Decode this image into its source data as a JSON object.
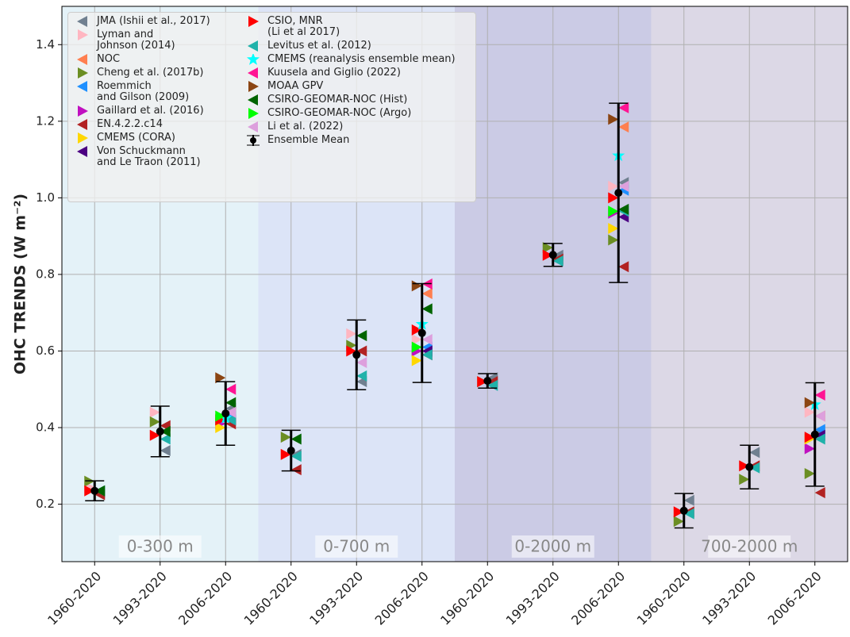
{
  "chart_data": {
    "type": "scatter",
    "y_label": "OHC TRENDS (W m⁻²)",
    "categories": [
      "1960-2020",
      "1993-2020",
      "2006-2020",
      "1960-2020",
      "1993-2020",
      "2006-2020",
      "1960-2020",
      "1993-2020",
      "2006-2020",
      "1960-2020",
      "1993-2020",
      "2006-2020"
    ],
    "regions": [
      {
        "label": "0-300 m",
        "color": "#e4f2f8"
      },
      {
        "label": "0-700 m",
        "color": "#dce4f7"
      },
      {
        "label": "0-2000 m",
        "color": "#cbcbe5"
      },
      {
        "label": "700-2000 m",
        "color": "#dcd8e6"
      }
    ],
    "ylim": [
      0.05,
      1.5
    ],
    "yticks": [
      0.2,
      0.4,
      0.6,
      0.8,
      {
        "value": 1,
        "label": "1.0"
      },
      1.2,
      1.4
    ],
    "grid": true,
    "legend": "upper left",
    "series": [
      {
        "name": "JMA (Ishii et al., 2017)",
        "color": "#708090",
        "marker": "left",
        "values": [
          0.23,
          0.34,
          0.45,
          0.33,
          0.52,
          0.6,
          0.53,
          0.85,
          1.04,
          0.21,
          0.335,
          0.39
        ]
      },
      {
        "name": "Lyman and\n Johnson (2014)",
        "color": "#ffb6c1",
        "marker": "right",
        "values": [
          0.245,
          0.44,
          null,
          0.33,
          0.645,
          0.63,
          null,
          null,
          1.03,
          null,
          null,
          0.44
        ]
      },
      {
        "name": "NOC",
        "color": "#ff7f50",
        "marker": "left",
        "values": [
          null,
          null,
          0.44,
          null,
          null,
          0.75,
          null,
          null,
          1.185,
          null,
          null,
          0.43
        ]
      },
      {
        "name": "Cheng et al. (2017b)",
        "color": "#6b8e23",
        "marker": "right",
        "values": [
          0.26,
          0.415,
          0.42,
          0.375,
          0.615,
          0.6,
          0.52,
          0.87,
          0.89,
          0.155,
          0.265,
          0.28
        ]
      },
      {
        "name": "Roemmich\nand Gilson (2009)",
        "color": "#1e90ff",
        "marker": "left",
        "values": [
          null,
          null,
          0.43,
          null,
          null,
          0.61,
          null,
          null,
          1.02,
          null,
          null,
          0.395
        ]
      },
      {
        "name": "Gaillard et al. (2016)",
        "color": "#c010c0",
        "marker": "right",
        "values": [
          null,
          null,
          0.41,
          null,
          null,
          0.6,
          null,
          null,
          0.96,
          null,
          null,
          0.345
        ]
      },
      {
        "name": "EN.4.2.2.c14",
        "color": "#b22222",
        "marker": "left",
        "values": [
          0.225,
          0.405,
          0.41,
          0.29,
          0.6,
          0.59,
          0.52,
          0.84,
          0.82,
          0.18,
          0.3,
          0.23
        ]
      },
      {
        "name": "CMEMS (CORA)",
        "color": "#ffd700",
        "marker": "right",
        "values": [
          null,
          null,
          0.4,
          null,
          null,
          0.575,
          null,
          null,
          0.92,
          null,
          null,
          0.37
        ]
      },
      {
        "name": "Von Schuckmann\nand Le Traon (2011)",
        "color": "#4b0082",
        "marker": "left",
        "values": [
          null,
          null,
          0.42,
          null,
          null,
          0.6,
          null,
          null,
          0.95,
          null,
          null,
          0.38
        ]
      },
      {
        "name": "CSIO, MNR\n(Li et al 2017)",
        "color": "#ff0000",
        "marker": "right",
        "values": [
          0.235,
          0.38,
          0.42,
          0.33,
          0.6,
          0.655,
          0.52,
          0.85,
          1.0,
          0.18,
          0.3,
          0.375
        ]
      },
      {
        "name": "Levitus et al. (2012)",
        "color": "#20b2aa",
        "marker": "left",
        "values": [
          0.235,
          0.37,
          0.42,
          0.325,
          0.535,
          0.59,
          0.51,
          0.835,
          0.965,
          0.175,
          0.295,
          0.37
        ]
      },
      {
        "name": "CMEMS (reanalysis ensemble mean)",
        "color": "#00ffff",
        "marker": "star",
        "values": [
          null,
          null,
          0.425,
          null,
          null,
          0.67,
          null,
          null,
          1.11,
          null,
          null,
          0.46
        ]
      },
      {
        "name": "Kuusela and Giglio (2022)",
        "color": "#ff1493",
        "marker": "left",
        "values": [
          null,
          null,
          0.5,
          null,
          null,
          0.775,
          null,
          null,
          1.235,
          null,
          null,
          0.485
        ]
      },
      {
        "name": "MOAA GPV",
        "color": "#8b4513",
        "marker": "right",
        "values": [
          null,
          null,
          0.53,
          null,
          null,
          0.77,
          null,
          null,
          1.205,
          null,
          null,
          0.465
        ]
      },
      {
        "name": "CSIRO-GEOMAR-NOC (Hist)",
        "color": "#006400",
        "marker": "left",
        "values": [
          0.235,
          0.39,
          0.465,
          0.37,
          0.64,
          0.71,
          null,
          null,
          0.97,
          null,
          null,
          null
        ]
      },
      {
        "name": "CSIRO-GEOMAR-NOC (Argo)",
        "color": "#00ff00",
        "marker": "right",
        "values": [
          null,
          null,
          0.43,
          null,
          null,
          0.61,
          null,
          null,
          0.965,
          null,
          null,
          null
        ]
      },
      {
        "name": "Li et al. (2022)",
        "color": "#dda0dd",
        "marker": "left",
        "values": [
          null,
          null,
          0.44,
          null,
          0.57,
          0.63,
          null,
          null,
          1.03,
          null,
          null,
          0.43
        ]
      }
    ],
    "ensemble": {
      "name": "Ensemble Mean",
      "color": "#000000",
      "values": [
        0.235,
        0.39,
        0.437,
        0.34,
        0.59,
        0.647,
        0.522,
        0.851,
        1.013,
        0.183,
        0.297,
        0.382
      ],
      "errors": [
        0.026,
        0.066,
        0.083,
        0.053,
        0.091,
        0.129,
        0.019,
        0.03,
        0.234,
        0.045,
        0.057,
        0.135
      ]
    }
  }
}
